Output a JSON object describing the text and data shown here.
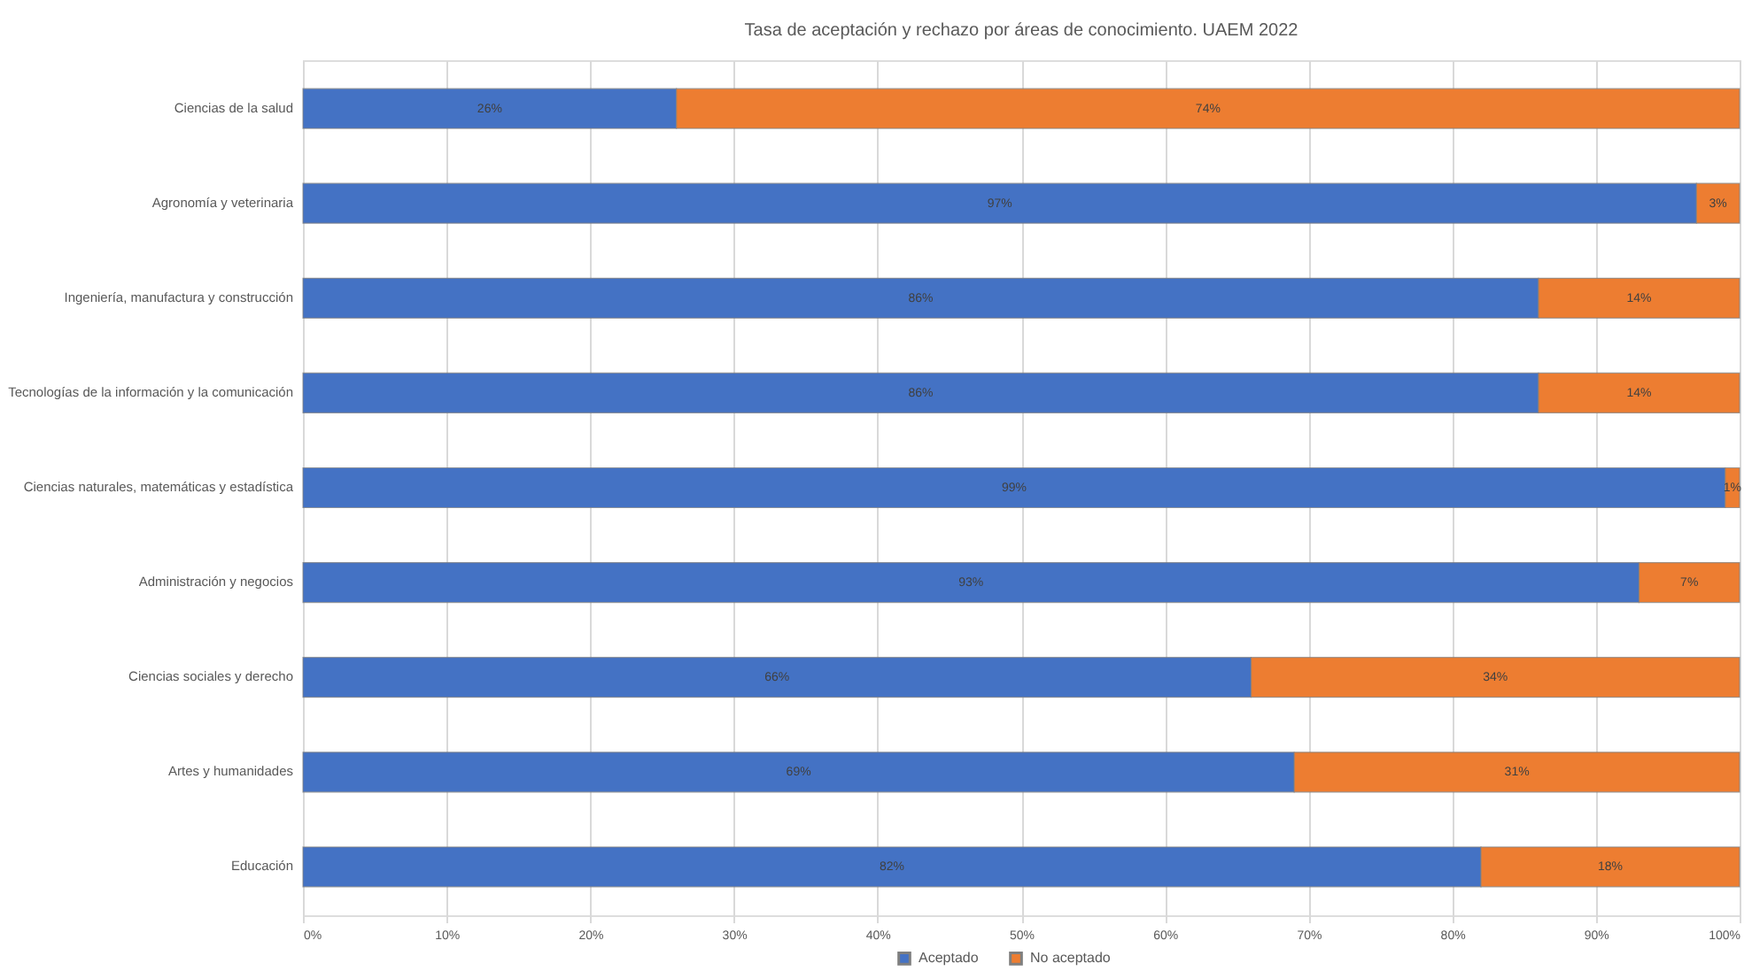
{
  "chart_data": {
    "type": "bar",
    "orientation": "horizontal",
    "stacked": true,
    "title": "Tasa de aceptación y rechazo por áreas de conocimiento. UAEM 2022",
    "categories": [
      "Ciencias de la salud",
      "Agronomía y veterinaria",
      "Ingeniería, manufactura y construcción",
      "Tecnologías de la información y la comunicación",
      "Ciencias naturales, matemáticas y estadística",
      "Administración y negocios",
      "Ciencias sociales y derecho",
      "Artes y humanidades",
      "Educación"
    ],
    "series": [
      {
        "name": "Aceptado",
        "color": "#4472c4",
        "values": [
          26,
          97,
          86,
          86,
          99,
          93,
          66,
          69,
          82
        ],
        "value_labels": [
          "26%",
          "97%",
          "86%",
          "86%",
          "99%",
          "93%",
          "66%",
          "69%",
          "82%"
        ]
      },
      {
        "name": "No aceptado",
        "color": "#ed7d31",
        "values": [
          74,
          3,
          14,
          14,
          1,
          7,
          34,
          31,
          18
        ],
        "value_labels": [
          "74%",
          "3%",
          "14%",
          "14%",
          "1%",
          "7%",
          "34%",
          "31%",
          "18%"
        ]
      }
    ],
    "xlim": [
      0,
      100
    ],
    "xticks": [
      {
        "value": 0,
        "label": "0%"
      },
      {
        "value": 10,
        "label": "10%"
      },
      {
        "value": 20,
        "label": "20%"
      },
      {
        "value": 30,
        "label": "30%"
      },
      {
        "value": 40,
        "label": "40%"
      },
      {
        "value": 50,
        "label": "50%"
      },
      {
        "value": 60,
        "label": "60%"
      },
      {
        "value": 70,
        "label": "70%"
      },
      {
        "value": 80,
        "label": "80%"
      },
      {
        "value": 90,
        "label": "90%"
      },
      {
        "value": 100,
        "label": "100%"
      }
    ],
    "grid": "x",
    "legend": "bottom"
  }
}
